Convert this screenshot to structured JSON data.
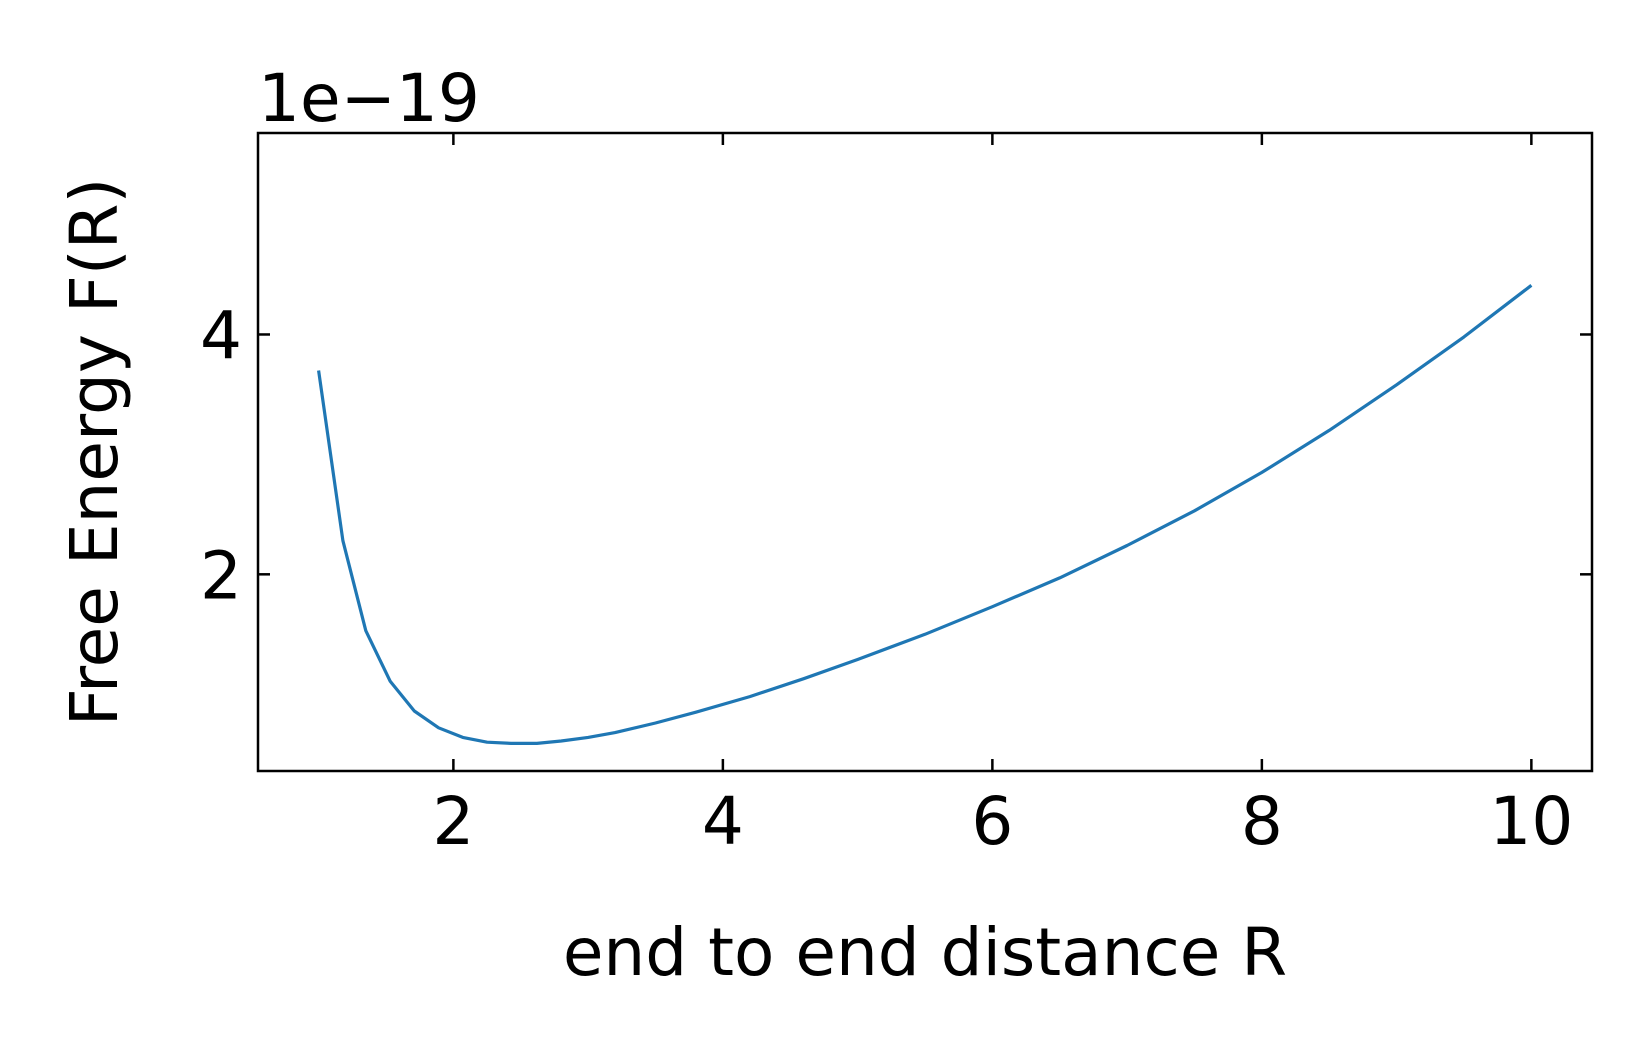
{
  "chart_data": {
    "type": "line",
    "xlabel": "end to end distance R",
    "ylabel": "Free Energy F(R)",
    "y_offset_label": "1e−19",
    "xlim": [
      0.55,
      10.45
    ],
    "ylim": [
      0.36,
      5.68
    ],
    "xticks": [
      {
        "value": 2,
        "label": "2"
      },
      {
        "value": 4,
        "label": "4"
      },
      {
        "value": 6,
        "label": "6"
      },
      {
        "value": 8,
        "label": "8"
      },
      {
        "value": 10,
        "label": "10"
      }
    ],
    "yticks": [
      {
        "value": 2,
        "label": "2"
      },
      {
        "value": 4,
        "label": "4"
      }
    ],
    "tick_direction": "in",
    "grid": false,
    "series": [
      {
        "color": "#1f77b4",
        "x": [
          1.0,
          1.18,
          1.35,
          1.53,
          1.71,
          1.89,
          2.07,
          2.25,
          2.43,
          2.62,
          2.8,
          3.0,
          3.2,
          3.5,
          3.8,
          4.2,
          4.6,
          5.0,
          5.5,
          6.0,
          6.5,
          7.0,
          7.5,
          8.0,
          8.5,
          9.0,
          9.5,
          10.0
        ],
        "values": [
          3.7,
          2.28,
          1.53,
          1.11,
          0.86,
          0.72,
          0.64,
          0.6,
          0.59,
          0.59,
          0.61,
          0.64,
          0.68,
          0.76,
          0.85,
          0.98,
          1.13,
          1.29,
          1.5,
          1.73,
          1.97,
          2.24,
          2.53,
          2.85,
          3.2,
          3.58,
          3.98,
          4.41
        ]
      }
    ]
  }
}
